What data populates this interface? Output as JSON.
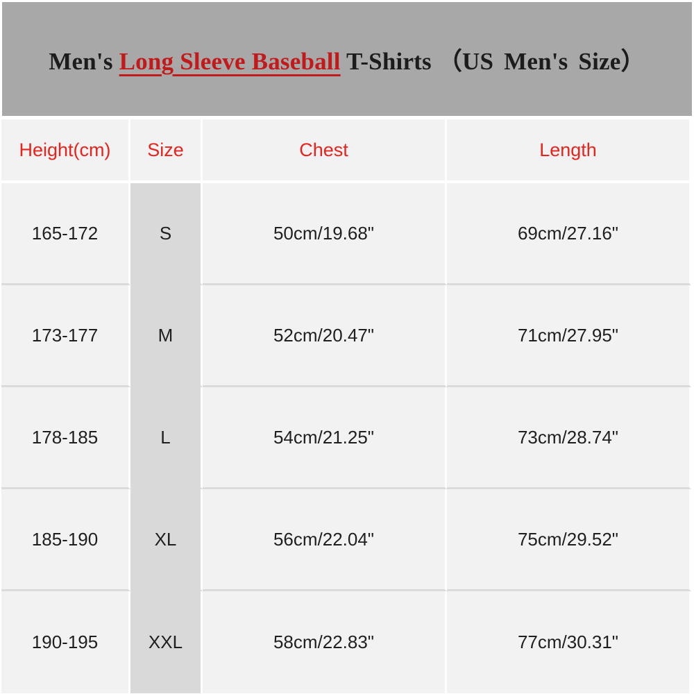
{
  "banner": {
    "title_prefix": "Men's",
    "title_highlight": "Long Sleeve Baseball",
    "title_suffix_1": "T-Shirts",
    "title_suffix_2": "（US Men's Size）"
  },
  "table": {
    "columns": [
      "Height(cm)",
      "Size",
      "Chest",
      "Length"
    ],
    "rows": [
      {
        "height": "165-172",
        "size": "S",
        "chest": "50cm/19.68\"",
        "length": "69cm/27.16\""
      },
      {
        "height": "173-177",
        "size": "M",
        "chest": "52cm/20.47\"",
        "length": "71cm/27.95\""
      },
      {
        "height": "178-185",
        "size": "L",
        "chest": "54cm/21.25\"",
        "length": "73cm/28.74\""
      },
      {
        "height": "185-190",
        "size": "XL",
        "chest": "56cm/22.04\"",
        "length": "75cm/29.52\""
      },
      {
        "height": "190-195",
        "size": "XXL",
        "chest": "58cm/22.83\"",
        "length": "77cm/30.31\""
      }
    ]
  },
  "colors": {
    "banner_bg": "#a8a8a8",
    "title_text": "#1c1c1c",
    "title_highlight_red": "#c21a1a",
    "header_text_red": "#e8231d",
    "cell_bg": "#f2f2f2",
    "size_column_bg": "#d9d9d9",
    "row_divider": "#dbdbdb",
    "column_gap": "#ffffff",
    "data_text": "#1f1f1f"
  },
  "chart_data": {
    "type": "table",
    "title": "Men's Long Sleeve Baseball T-Shirts（US Men's Size）",
    "columns": [
      "Height(cm)",
      "Size",
      "Chest",
      "Length"
    ],
    "rows": [
      [
        "165-172",
        "S",
        "50cm/19.68\"",
        "69cm/27.16\""
      ],
      [
        "173-177",
        "M",
        "52cm/20.47\"",
        "71cm/27.95\""
      ],
      [
        "178-185",
        "L",
        "54cm/21.25\"",
        "73cm/28.74\""
      ],
      [
        "185-190",
        "XL",
        "56cm/22.04\"",
        "75cm/29.52\""
      ],
      [
        "190-195",
        "XXL",
        "58cm/22.83\"",
        "77cm/30.31\""
      ]
    ],
    "layout_hints": {
      "highlighted_column": "Size",
      "header_text_color": "red",
      "title_highlight_underlined": "Long Sleeve Baseball"
    }
  }
}
